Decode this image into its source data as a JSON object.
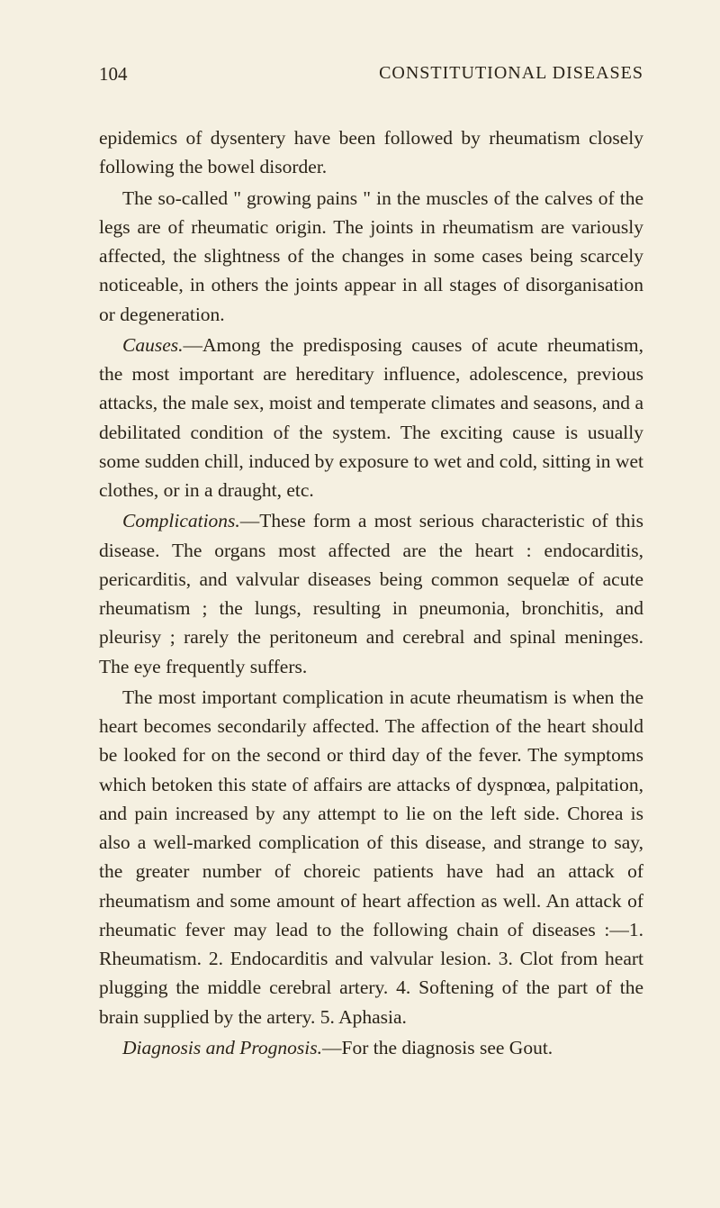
{
  "header": {
    "page_number": "104",
    "chapter_title": "CONSTITUTIONAL DISEASES"
  },
  "paragraphs": {
    "p1": "epidemics of dysentery have been followed by rheumatism closely following the bowel disorder.",
    "p2": "The so-called \" growing pains \" in the muscles of the calves of the legs are of rheumatic origin. The joints in rheumatism are variously affected, the slightness of the changes in some cases being scarcely noticeable, in others the joints appear in all stages of disorganisation or degeneration.",
    "p3_label": "Causes.",
    "p3": "—Among the predisposing causes of acute rheumatism, the most important are hereditary influence, adolescence, previous attacks, the male sex, moist and temperate climates and seasons, and a debilitated condition of the system. The exciting cause is usually some sudden chill, induced by exposure to wet and cold, sitting in wet clothes, or in a draught, etc.",
    "p4_label": "Complications.",
    "p4": "—These form a most serious characteristic of this disease. The organs most affected are the heart : endocarditis, pericarditis, and valvular diseases being common sequelæ of acute rheumatism ; the lungs, resulting in pneumonia, bronchitis, and pleurisy ; rarely the peritoneum and cerebral and spinal meninges. The eye frequently suffers.",
    "p5": "The most important complication in acute rheumatism is when the heart becomes secondarily affected. The affection of the heart should be looked for on the second or third day of the fever. The symptoms which betoken this state of affairs are attacks of dyspnœa, palpitation, and pain increased by any attempt to lie on the left side. Chorea is also a well-marked complication of this disease, and strange to say, the greater number of choreic patients have had an attack of rheumatism and some amount of heart affection as well. An attack of rheumatic fever may lead to the following chain of diseases :—1. Rheumatism. 2. Endocarditis and valvular lesion. 3. Clot from heart plugging the middle cerebral artery. 4. Softening of the part of the brain supplied by the artery. 5. Aphasia.",
    "p6_label": "Diagnosis and Prognosis.",
    "p6": "—For the diagnosis see Gout."
  },
  "colors": {
    "background": "#f5f0e1",
    "text": "#2a2318"
  },
  "typography": {
    "body_font_size": 21.5,
    "header_font_size": 21,
    "line_height": 1.5
  }
}
